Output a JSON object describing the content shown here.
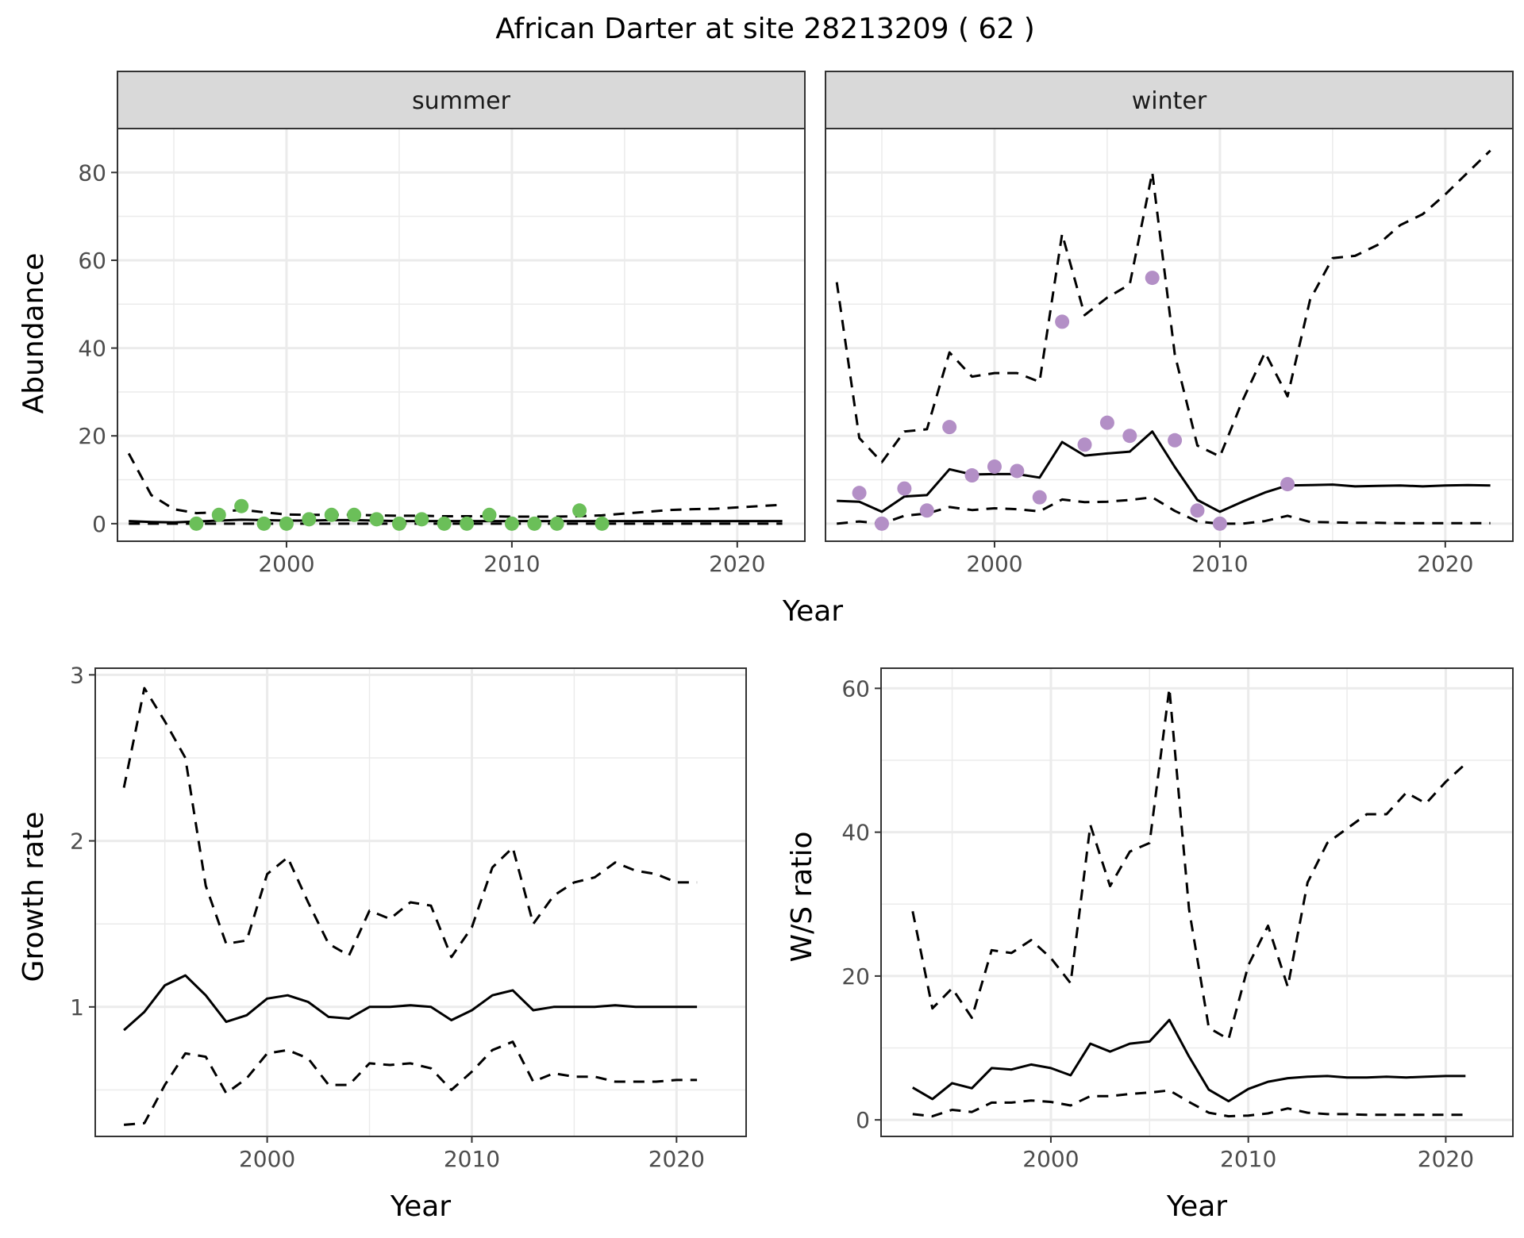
{
  "title": "African Darter at site 28213209 ( 62 )",
  "chart_data": [
    {
      "id": "abundance-summer",
      "type": "line",
      "facet_label": "summer",
      "title": "",
      "xlabel": "Year",
      "ylabel": "Abundance",
      "xlim": [
        1992.5,
        2023
      ],
      "ylim": [
        -4,
        90
      ],
      "xticks": [
        2000,
        2010,
        2020
      ],
      "yticks": [
        0,
        20,
        40,
        60,
        80
      ],
      "grid": true,
      "point_color": "#6BBF59",
      "x": [
        1993,
        1994,
        1995,
        1996,
        1997,
        1998,
        1999,
        2000,
        2001,
        2002,
        2003,
        2004,
        2005,
        2006,
        2007,
        2008,
        2009,
        2010,
        2011,
        2012,
        2013,
        2014,
        2015,
        2016,
        2017,
        2018,
        2019,
        2020,
        2021,
        2022
      ],
      "series": [
        {
          "name": "estimate",
          "style": "solid",
          "values": [
            0.6,
            0.4,
            0.3,
            0.5,
            0.7,
            0.9,
            0.8,
            0.7,
            0.7,
            0.8,
            0.8,
            0.7,
            0.6,
            0.6,
            0.6,
            0.6,
            0.6,
            0.6,
            0.6,
            0.6,
            0.6,
            0.6,
            0.6,
            0.6,
            0.6,
            0.6,
            0.6,
            0.6,
            0.6,
            0.6
          ]
        },
        {
          "name": "upper",
          "style": "dashed",
          "values": [
            16,
            6.5,
            3.3,
            2.4,
            2.6,
            3.2,
            2.6,
            2.1,
            2.0,
            2.0,
            2.0,
            1.9,
            1.8,
            1.8,
            1.7,
            1.7,
            1.7,
            1.6,
            1.6,
            1.6,
            1.7,
            1.9,
            2.3,
            2.7,
            3.1,
            3.3,
            3.4,
            3.7,
            4.0,
            4.3
          ]
        },
        {
          "name": "lower",
          "style": "dashed",
          "values": [
            0,
            0,
            0,
            0,
            0,
            0,
            0,
            0,
            0,
            0,
            0,
            0,
            0,
            0,
            0,
            0,
            0,
            0,
            0,
            0,
            0,
            0,
            0,
            0,
            0,
            0,
            0,
            0,
            0,
            0
          ]
        }
      ],
      "points": {
        "x": [
          1996,
          1997,
          1998,
          1999,
          2000,
          2001,
          2002,
          2003,
          2004,
          2005,
          2006,
          2007,
          2008,
          2009,
          2010,
          2011,
          2012,
          2013,
          2014
        ],
        "y": [
          0,
          2,
          4,
          0,
          0,
          1,
          2,
          2,
          1,
          0,
          1,
          0,
          0,
          2,
          0,
          0,
          0,
          3,
          0
        ]
      }
    },
    {
      "id": "abundance-winter",
      "type": "line",
      "facet_label": "winter",
      "title": "",
      "xlabel": "Year",
      "ylabel": "Abundance",
      "xlim": [
        1992.5,
        2023
      ],
      "ylim": [
        -4,
        90
      ],
      "xticks": [
        2000,
        2010,
        2020
      ],
      "yticks": [
        0,
        20,
        40,
        60,
        80
      ],
      "grid": true,
      "point_color": "#B38FC6",
      "x": [
        1993,
        1994,
        1995,
        1996,
        1997,
        1998,
        1999,
        2000,
        2001,
        2002,
        2003,
        2004,
        2005,
        2006,
        2007,
        2008,
        2009,
        2010,
        2011,
        2012,
        2013,
        2014,
        2015,
        2016,
        2017,
        2018,
        2019,
        2020,
        2021,
        2022
      ],
      "series": [
        {
          "name": "estimate",
          "style": "solid",
          "values": [
            5.2,
            5.0,
            2.7,
            6.2,
            6.5,
            12.4,
            11.2,
            11.3,
            11.3,
            10.5,
            18.6,
            15.5,
            16.0,
            16.4,
            21.0,
            12.9,
            5.4,
            2.7,
            5.0,
            7.1,
            8.7,
            8.8,
            8.9,
            8.5,
            8.6,
            8.7,
            8.5,
            8.7,
            8.8,
            8.7
          ]
        },
        {
          "name": "upper",
          "style": "dashed",
          "values": [
            55,
            19.5,
            14,
            21,
            21.5,
            39,
            33.5,
            34.3,
            34.3,
            32.3,
            66,
            47.5,
            51.5,
            54.5,
            80,
            38.5,
            17.8,
            15.3,
            28,
            39,
            29,
            51,
            60.5,
            61,
            63.5,
            68,
            70.5,
            75,
            80,
            85
          ]
        },
        {
          "name": "lower",
          "style": "dashed",
          "values": [
            0,
            0.5,
            0,
            1.8,
            2.3,
            3.8,
            3.1,
            3.5,
            3.3,
            2.8,
            5.5,
            4.9,
            5.0,
            5.4,
            6.0,
            2.9,
            0.5,
            0,
            0,
            0.6,
            1.8,
            0.4,
            0.3,
            0.2,
            0.2,
            0.1,
            0.1,
            0.1,
            0.1,
            0.1
          ]
        }
      ],
      "points": {
        "x": [
          1994,
          1995,
          1996,
          1997,
          1998,
          1999,
          2000,
          2001,
          2002,
          2003,
          2004,
          2005,
          2006,
          2007,
          2008,
          2009,
          2010,
          2013
        ],
        "y": [
          7,
          0,
          8,
          3,
          22,
          11,
          13,
          12,
          6,
          46,
          18,
          23,
          20,
          56,
          19,
          3,
          0,
          9
        ]
      }
    },
    {
      "id": "growth-rate",
      "type": "line",
      "title": "",
      "xlabel": "Year",
      "ylabel": "Growth rate",
      "xlim": [
        1991.6,
        2023.4
      ],
      "ylim": [
        0.22,
        3.04
      ],
      "xticks": [
        2000,
        2010,
        2020
      ],
      "yticks": [
        1,
        2,
        3
      ],
      "grid": true,
      "x": [
        1993,
        1994,
        1995,
        1996,
        1997,
        1998,
        1999,
        2000,
        2001,
        2002,
        2003,
        2004,
        2005,
        2006,
        2007,
        2008,
        2009,
        2010,
        2011,
        2012,
        2013,
        2014,
        2015,
        2016,
        2017,
        2018,
        2019,
        2020,
        2021
      ],
      "series": [
        {
          "name": "estimate",
          "style": "solid",
          "values": [
            0.86,
            0.97,
            1.13,
            1.19,
            1.07,
            0.91,
            0.95,
            1.05,
            1.07,
            1.03,
            0.94,
            0.93,
            1.0,
            1.0,
            1.01,
            1.0,
            0.92,
            0.98,
            1.07,
            1.1,
            0.98,
            1.0,
            1.0,
            1.0,
            1.01,
            1.0,
            1.0,
            1.0,
            1.0
          ]
        },
        {
          "name": "upper",
          "style": "dashed",
          "values": [
            2.32,
            2.92,
            2.72,
            2.5,
            1.73,
            1.38,
            1.4,
            1.8,
            1.9,
            1.63,
            1.38,
            1.31,
            1.58,
            1.53,
            1.63,
            1.61,
            1.3,
            1.48,
            1.84,
            1.96,
            1.5,
            1.67,
            1.75,
            1.78,
            1.87,
            1.82,
            1.8,
            1.75,
            1.75
          ]
        },
        {
          "name": "lower",
          "style": "dashed",
          "values": [
            0.29,
            0.3,
            0.53,
            0.72,
            0.7,
            0.48,
            0.57,
            0.72,
            0.74,
            0.69,
            0.53,
            0.53,
            0.66,
            0.65,
            0.66,
            0.63,
            0.5,
            0.61,
            0.74,
            0.79,
            0.55,
            0.6,
            0.58,
            0.58,
            0.55,
            0.55,
            0.55,
            0.56,
            0.56
          ]
        }
      ]
    },
    {
      "id": "ws-ratio",
      "type": "line",
      "title": "",
      "xlabel": "Year",
      "ylabel": "W/S ratio",
      "xlim": [
        1991.4,
        2023.4
      ],
      "ylim": [
        -2.3,
        62.8
      ],
      "xticks": [
        2000,
        2010,
        2020
      ],
      "yticks": [
        0,
        20,
        40,
        60
      ],
      "grid": true,
      "x": [
        1993,
        1994,
        1995,
        1996,
        1997,
        1998,
        1999,
        2000,
        2001,
        2002,
        2003,
        2004,
        2005,
        2006,
        2007,
        2008,
        2009,
        2010,
        2011,
        2012,
        2013,
        2014,
        2015,
        2016,
        2017,
        2018,
        2019,
        2020,
        2021
      ],
      "series": [
        {
          "name": "estimate",
          "style": "solid",
          "values": [
            4.5,
            2.9,
            5.1,
            4.4,
            7.2,
            7.0,
            7.7,
            7.2,
            6.2,
            10.6,
            9.5,
            10.6,
            10.9,
            13.9,
            8.8,
            4.2,
            2.6,
            4.3,
            5.3,
            5.8,
            6.0,
            6.1,
            5.9,
            5.9,
            6.0,
            5.9,
            6.0,
            6.1,
            6.1
          ]
        },
        {
          "name": "upper",
          "style": "dashed",
          "values": [
            29,
            15.5,
            18.3,
            14.2,
            23.6,
            23.2,
            25.0,
            22.5,
            19.0,
            41,
            32.5,
            37.3,
            38.5,
            60,
            29.3,
            12.8,
            11.2,
            21.5,
            27,
            18.5,
            33,
            38.5,
            40.5,
            42.5,
            42.5,
            45.5,
            44,
            47,
            49.5
          ]
        },
        {
          "name": "lower",
          "style": "dashed",
          "values": [
            0.8,
            0.5,
            1.4,
            1.1,
            2.4,
            2.4,
            2.7,
            2.5,
            2.0,
            3.3,
            3.3,
            3.6,
            3.8,
            4.1,
            2.5,
            1.0,
            0.5,
            0.6,
            0.9,
            1.6,
            1.0,
            0.8,
            0.8,
            0.7,
            0.7,
            0.7,
            0.7,
            0.7,
            0.7
          ]
        }
      ]
    }
  ]
}
